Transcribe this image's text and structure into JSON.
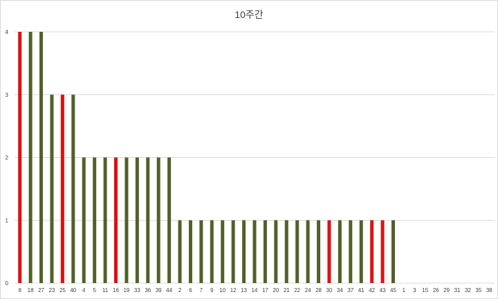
{
  "chart_data": {
    "type": "bar",
    "title": "10주간",
    "xlabel": "",
    "ylabel": "",
    "ylim": [
      0,
      4
    ],
    "yticks": [
      0,
      1,
      2,
      3,
      4
    ],
    "grid": true,
    "legend": "none",
    "categories": [
      "8",
      "18",
      "27",
      "23",
      "25",
      "40",
      "4",
      "5",
      "11",
      "16",
      "19",
      "33",
      "36",
      "39",
      "44",
      "2",
      "6",
      "7",
      "9",
      "10",
      "12",
      "13",
      "14",
      "17",
      "20",
      "21",
      "22",
      "24",
      "28",
      "30",
      "34",
      "37",
      "41",
      "42",
      "43",
      "45",
      "1",
      "3",
      "15",
      "26",
      "29",
      "31",
      "32",
      "35",
      "38"
    ],
    "values": [
      4,
      4,
      4,
      3,
      3,
      3,
      2,
      2,
      2,
      2,
      2,
      2,
      2,
      2,
      2,
      1,
      1,
      1,
      1,
      1,
      1,
      1,
      1,
      1,
      1,
      1,
      1,
      1,
      1,
      1,
      1,
      1,
      1,
      1,
      1,
      1,
      0,
      0,
      0,
      0,
      0,
      0,
      0,
      0,
      0
    ],
    "highlighted": [
      true,
      false,
      false,
      false,
      true,
      false,
      false,
      false,
      false,
      true,
      false,
      false,
      false,
      false,
      false,
      false,
      false,
      false,
      false,
      false,
      false,
      false,
      false,
      false,
      false,
      false,
      false,
      false,
      false,
      true,
      false,
      false,
      false,
      true,
      true,
      false,
      false,
      false,
      false,
      false,
      false,
      false,
      false,
      false,
      false
    ],
    "colors": {
      "default": "#4f6228",
      "highlight": "#e01010",
      "grid": "#d9d9d9",
      "text": "#404040"
    }
  }
}
